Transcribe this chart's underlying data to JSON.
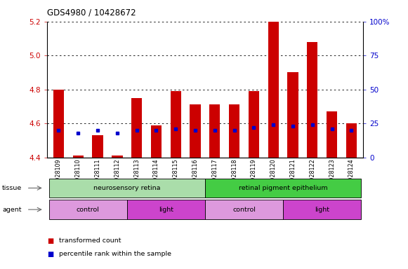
{
  "title": "GDS4980 / 10428672",
  "samples": [
    "GSM928109",
    "GSM928110",
    "GSM928111",
    "GSM928112",
    "GSM928113",
    "GSM928114",
    "GSM928115",
    "GSM928116",
    "GSM928117",
    "GSM928118",
    "GSM928119",
    "GSM928120",
    "GSM928121",
    "GSM928122",
    "GSM928123",
    "GSM928124"
  ],
  "transformed_count": [
    4.8,
    4.41,
    4.53,
    4.41,
    4.75,
    4.59,
    4.79,
    4.71,
    4.71,
    4.71,
    4.79,
    5.2,
    4.9,
    5.08,
    4.67,
    4.6
  ],
  "percentile_rank": [
    20,
    18,
    20,
    18,
    20,
    20,
    21,
    20,
    20,
    20,
    22,
    24,
    23,
    24,
    21,
    20
  ],
  "ylim_left": [
    4.4,
    5.2
  ],
  "ylim_right": [
    0,
    100
  ],
  "yticks_left": [
    4.4,
    4.6,
    4.8,
    5.0,
    5.2
  ],
  "yticks_right": [
    0,
    25,
    50,
    75,
    100
  ],
  "bar_color": "#cc0000",
  "dot_color": "#0000cc",
  "baseline": 4.4,
  "tissue_groups": [
    {
      "label": "neurosensory retina",
      "start": 0,
      "end": 7,
      "color": "#aaddaa"
    },
    {
      "label": "retinal pigment epithelium",
      "start": 8,
      "end": 15,
      "color": "#44cc44"
    }
  ],
  "agent_groups": [
    {
      "label": "control",
      "start": 0,
      "end": 3,
      "color": "#dd99dd"
    },
    {
      "label": "light",
      "start": 4,
      "end": 7,
      "color": "#cc44cc"
    },
    {
      "label": "control",
      "start": 8,
      "end": 11,
      "color": "#dd99dd"
    },
    {
      "label": "light",
      "start": 12,
      "end": 15,
      "color": "#cc44cc"
    }
  ],
  "bg_color": "#ffffff",
  "tick_label_color_left": "#cc0000",
  "tick_label_color_right": "#0000cc",
  "bar_width": 0.55
}
